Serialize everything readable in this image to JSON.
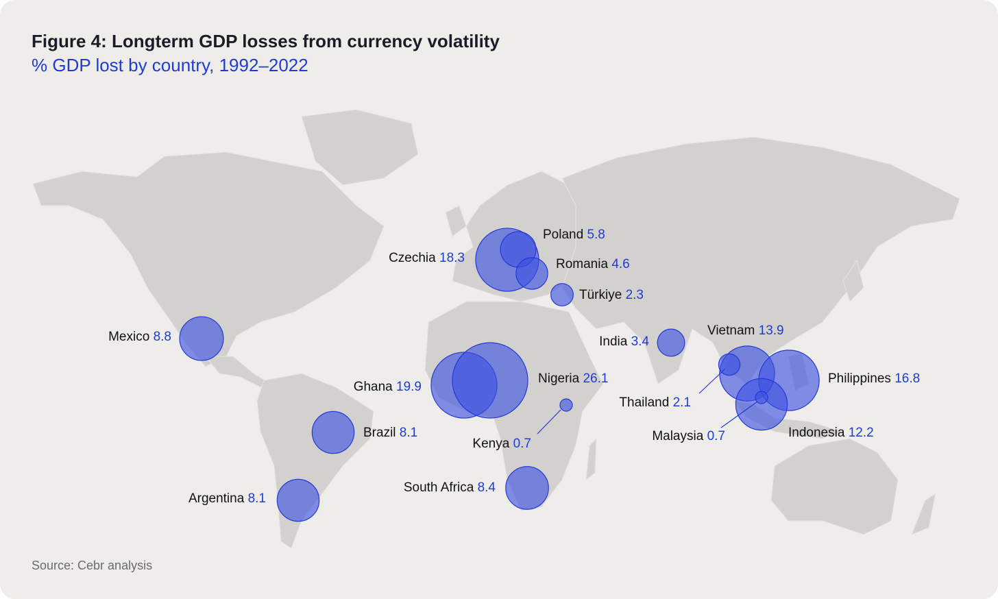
{
  "chart_data": {
    "type": "bubble-map",
    "title": "Figure 4: Longterm GDP losses from currency volatility",
    "subtitle": "% GDP lost by country, 1992–2022",
    "categories": [
      "Czechia",
      "Poland",
      "Romania",
      "Türkiye",
      "Mexico",
      "Ghana",
      "Nigeria",
      "Kenya",
      "Brazil",
      "Argentina",
      "South Africa",
      "India",
      "Vietnam",
      "Thailand",
      "Philippines",
      "Indonesia",
      "Malaysia"
    ],
    "values": [
      18.3,
      5.8,
      4.6,
      2.3,
      8.8,
      19.9,
      26.1,
      0.7,
      8.1,
      8.1,
      8.4,
      3.4,
      13.9,
      2.1,
      16.8,
      12.2,
      0.7
    ],
    "color": "#3b50e0",
    "source": "Source: Cebr analysis"
  }
}
